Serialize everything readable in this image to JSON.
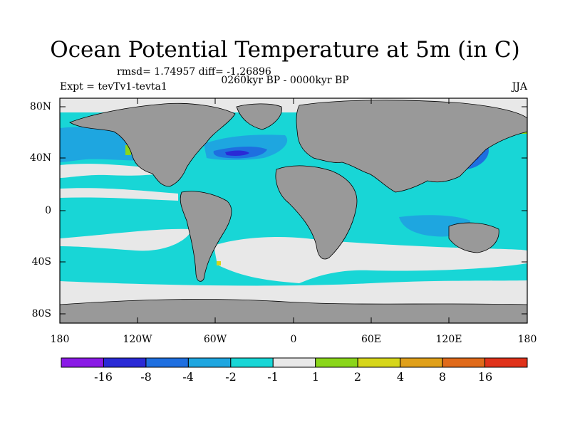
{
  "title": "Ocean Potential Temperature at 5m (in C)",
  "stats": "rmsd= 1.74957 diff= -1.26896",
  "period": "0260kyr BP - 0000kyr BP",
  "experiment": "Expt = tevTv1-tevta1",
  "season": "JJA",
  "axes": {
    "lat_labels": [
      "80N",
      "40N",
      "0",
      "40S",
      "80S"
    ],
    "lon_labels": [
      "180",
      "120W",
      "60W",
      "0",
      "60E",
      "120E",
      "180"
    ]
  },
  "colorbar": {
    "labels": [
      "-16",
      "-8",
      "-4",
      "-2",
      "-1",
      "1",
      "2",
      "4",
      "8",
      "16"
    ],
    "colors": [
      "#8a1ae6",
      "#2a2ad6",
      "#1e6fe0",
      "#1ea6e0",
      "#18d6d6",
      "#e8e8e8",
      "#8ad61a",
      "#d6d61a",
      "#e0a01a",
      "#e06a1a",
      "#e0321a"
    ]
  },
  "colors": {
    "land": "#999999",
    "no_change": "#e8e8e8",
    "light_cool": "#18d6d6",
    "cool": "#1ea6e0",
    "cooler": "#1e6fe0",
    "coldest": "#2a2ad6",
    "warm": "#8ad61a"
  }
}
